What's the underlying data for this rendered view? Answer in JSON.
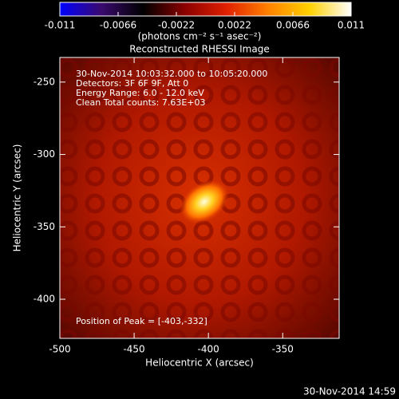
{
  "chart_data": {
    "type": "image",
    "title": "Reconstructed RHESSI Image",
    "x_label": "Heliocentric X (arcsec)",
    "y_label": "Heliocentric Y (arcsec)",
    "xlim": [
      -500,
      -312
    ],
    "xticks": [
      -500,
      -450,
      -400,
      -350
    ],
    "ylim": [
      -427,
      -233
    ],
    "yticks": [
      -250,
      -300,
      -350,
      -400
    ],
    "colorbar": {
      "lim": [
        -0.011,
        0.011
      ],
      "ticks": [
        -0.011,
        -0.0066,
        -0.0022,
        0.0022,
        0.0066,
        0.011
      ],
      "label": "(photons cm⁻² s⁻¹ asec⁻²)",
      "colormap": [
        "#0000ff",
        "#3a0a6e",
        "#000000",
        "#8b0000",
        "#e02000",
        "#ff8000",
        "#ffd000",
        "#ffffff"
      ]
    },
    "annotations": [
      "30-Nov-2014 10:03:32.000 to 10:05:20.000",
      "Detectors: 3F 6F 9F, Att 0",
      "Energy Range: 6.0 - 12.0 keV",
      "Clean     Total counts: 7.63E+03"
    ],
    "peak_label": "Position of Peak = [-403,-332]",
    "timestamp": "30-Nov-2014 14:59"
  }
}
